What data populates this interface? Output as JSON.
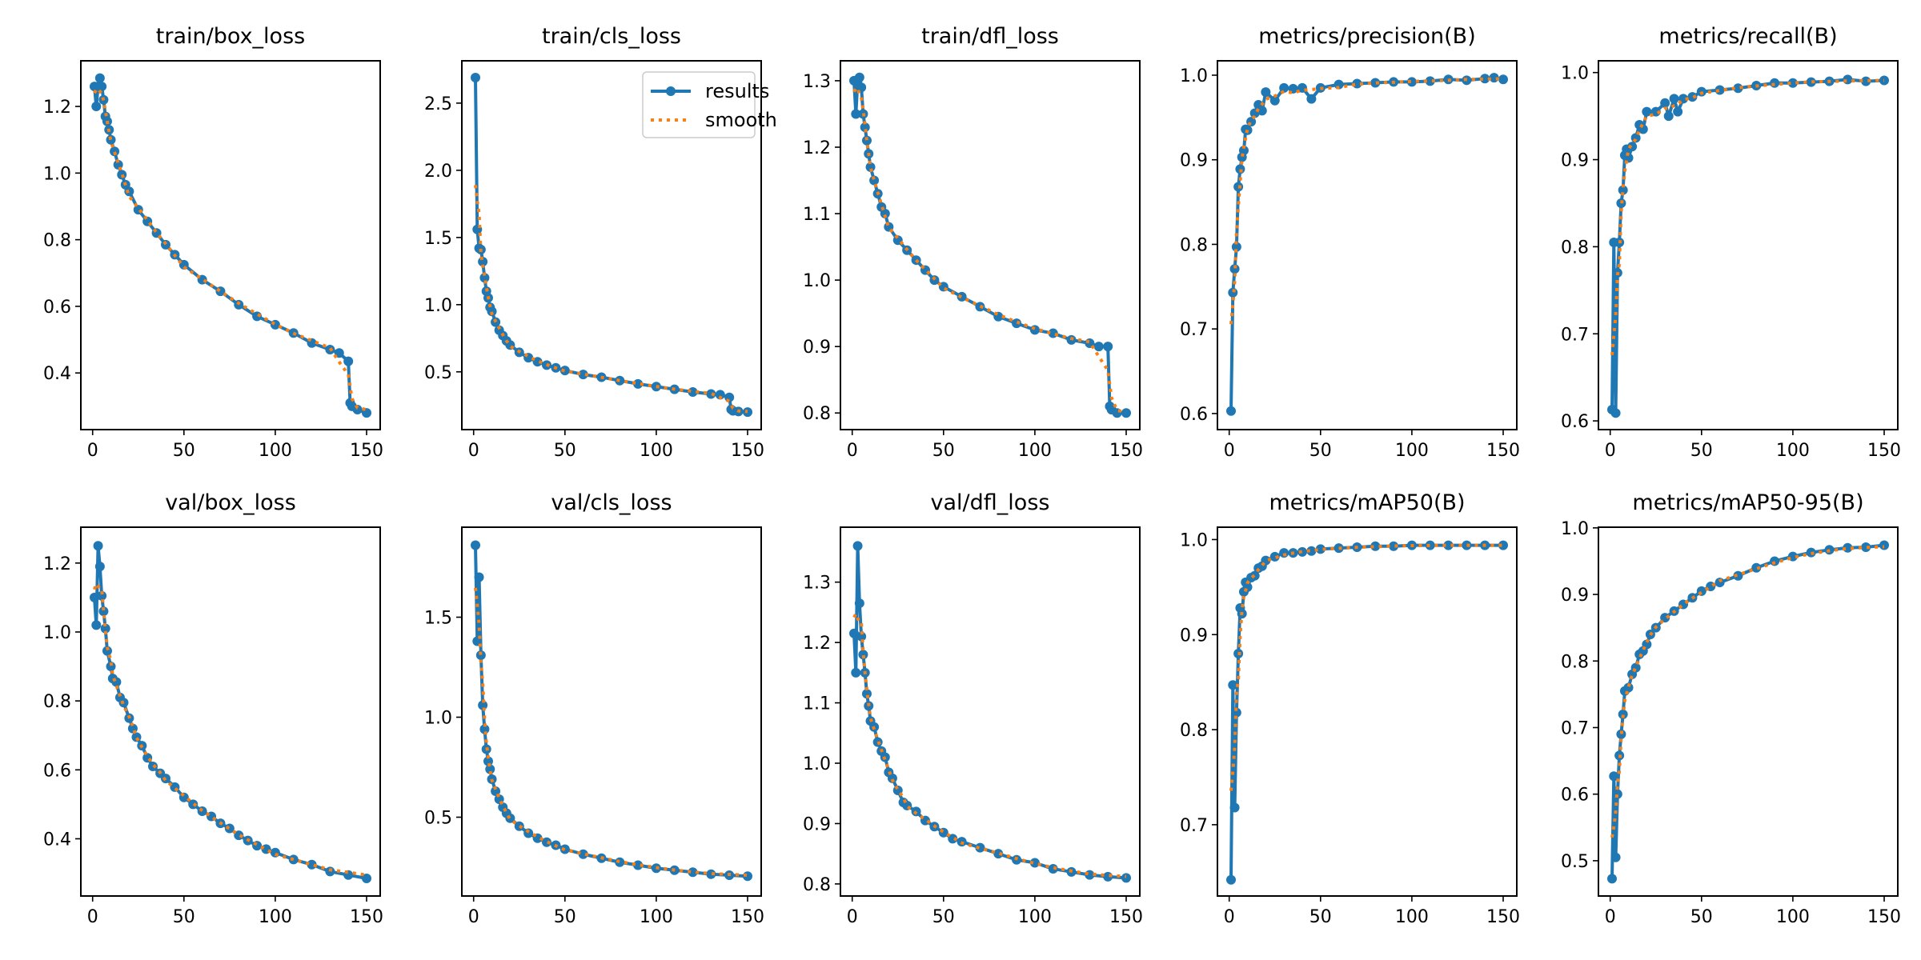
{
  "legend": {
    "results_label": "results",
    "smooth_label": "smooth",
    "placement": "upper-right of train/cls_loss"
  },
  "colors": {
    "results": "#1f77b4",
    "smooth": "#ff7f0e"
  },
  "chart_data": [
    {
      "type": "line",
      "title": "train/box_loss",
      "xlim": [
        -6.45,
        157.45
      ],
      "ylim": [
        0.23,
        1.337
      ],
      "xticks": [
        0,
        50,
        100,
        150
      ],
      "yticks": [
        "0.4",
        "0.6",
        "0.8",
        "1.0",
        "1.2"
      ],
      "grid": false,
      "x": [
        1,
        2,
        3,
        4,
        5,
        6,
        7,
        8,
        9,
        10,
        12,
        14,
        16,
        18,
        20,
        25,
        30,
        35,
        40,
        45,
        50,
        60,
        70,
        80,
        90,
        100,
        110,
        120,
        130,
        135,
        140,
        141,
        142,
        145,
        150
      ],
      "series": [
        {
          "name": "results",
          "values": [
            1.26,
            1.2,
            1.26,
            1.285,
            1.26,
            1.22,
            1.17,
            1.155,
            1.13,
            1.1,
            1.065,
            1.025,
            0.995,
            0.965,
            0.945,
            0.89,
            0.855,
            0.82,
            0.785,
            0.755,
            0.725,
            0.68,
            0.645,
            0.605,
            0.57,
            0.545,
            0.52,
            0.49,
            0.47,
            0.46,
            0.435,
            0.31,
            0.3,
            0.29,
            0.28
          ]
        }
      ]
    },
    {
      "type": "line",
      "title": "train/cls_loss",
      "xlim": [
        -6.45,
        157.45
      ],
      "ylim": [
        0.07,
        2.815
      ],
      "xticks": [
        0,
        50,
        100,
        150
      ],
      "yticks": [
        "0.5",
        "1.0",
        "1.5",
        "2.0",
        "2.5"
      ],
      "grid": false,
      "legend": true,
      "x": [
        1,
        2,
        3,
        4,
        5,
        6,
        7,
        8,
        9,
        10,
        12,
        14,
        16,
        18,
        20,
        25,
        30,
        35,
        40,
        45,
        50,
        60,
        70,
        80,
        90,
        100,
        110,
        120,
        130,
        135,
        140,
        141,
        142,
        145,
        150
      ],
      "series": [
        {
          "name": "results",
          "values": [
            2.69,
            1.56,
            1.42,
            1.41,
            1.32,
            1.2,
            1.1,
            1.05,
            0.98,
            0.95,
            0.87,
            0.81,
            0.77,
            0.73,
            0.7,
            0.645,
            0.605,
            0.575,
            0.55,
            0.53,
            0.51,
            0.48,
            0.46,
            0.435,
            0.41,
            0.39,
            0.37,
            0.35,
            0.335,
            0.33,
            0.31,
            0.22,
            0.21,
            0.205,
            0.2
          ]
        }
      ]
    },
    {
      "type": "line",
      "title": "train/dfl_loss",
      "xlim": [
        -6.45,
        157.45
      ],
      "ylim": [
        0.775,
        1.33
      ],
      "xticks": [
        0,
        50,
        100,
        150
      ],
      "yticks": [
        "0.8",
        "0.9",
        "1.0",
        "1.1",
        "1.2",
        "1.3"
      ],
      "grid": false,
      "x": [
        1,
        2,
        3,
        4,
        5,
        6,
        7,
        8,
        9,
        10,
        12,
        14,
        16,
        18,
        20,
        25,
        30,
        35,
        40,
        45,
        50,
        60,
        70,
        80,
        90,
        100,
        110,
        120,
        130,
        135,
        140,
        141,
        142,
        145,
        150
      ],
      "series": [
        {
          "name": "results",
          "values": [
            1.3,
            1.25,
            1.3,
            1.305,
            1.29,
            1.25,
            1.23,
            1.21,
            1.19,
            1.17,
            1.15,
            1.13,
            1.11,
            1.1,
            1.08,
            1.06,
            1.045,
            1.03,
            1.015,
            1.0,
            0.99,
            0.975,
            0.96,
            0.945,
            0.935,
            0.925,
            0.92,
            0.91,
            0.905,
            0.9,
            0.9,
            0.81,
            0.805,
            0.8,
            0.8
          ]
        }
      ]
    },
    {
      "type": "line",
      "title": "metrics/precision(B)",
      "xlim": [
        -6.45,
        157.45
      ],
      "ylim": [
        0.581,
        1.017
      ],
      "xticks": [
        0,
        50,
        100,
        150
      ],
      "yticks": [
        "0.6",
        "0.7",
        "0.8",
        "0.9",
        "1.0"
      ],
      "grid": false,
      "x": [
        1,
        2,
        3,
        4,
        5,
        6,
        7,
        8,
        9,
        10,
        12,
        14,
        16,
        18,
        20,
        25,
        30,
        35,
        40,
        45,
        50,
        60,
        70,
        80,
        90,
        100,
        110,
        120,
        130,
        140,
        145,
        150
      ],
      "series": [
        {
          "name": "results",
          "values": [
            0.603,
            0.743,
            0.771,
            0.797,
            0.868,
            0.889,
            0.903,
            0.911,
            0.936,
            0.935,
            0.945,
            0.955,
            0.965,
            0.958,
            0.98,
            0.97,
            0.985,
            0.984,
            0.985,
            0.972,
            0.985,
            0.989,
            0.99,
            0.991,
            0.992,
            0.992,
            0.993,
            0.995,
            0.994,
            0.996,
            0.997,
            0.995
          ]
        }
      ]
    },
    {
      "type": "line",
      "title": "metrics/recall(B)",
      "xlim": [
        -6.45,
        157.45
      ],
      "ylim": [
        0.59,
        1.0135
      ],
      "xticks": [
        0,
        50,
        100,
        150
      ],
      "yticks": [
        "0.6",
        "0.7",
        "0.8",
        "0.9",
        "1.0"
      ],
      "grid": false,
      "x": [
        1,
        2,
        3,
        4,
        5,
        6,
        7,
        8,
        9,
        10,
        12,
        14,
        16,
        18,
        20,
        25,
        30,
        32,
        35,
        37,
        40,
        45,
        50,
        60,
        70,
        80,
        90,
        100,
        110,
        120,
        130,
        140,
        150
      ],
      "series": [
        {
          "name": "results",
          "values": [
            0.613,
            0.805,
            0.609,
            0.77,
            0.805,
            0.85,
            0.865,
            0.905,
            0.912,
            0.902,
            0.915,
            0.925,
            0.94,
            0.935,
            0.955,
            0.955,
            0.965,
            0.95,
            0.97,
            0.955,
            0.97,
            0.972,
            0.978,
            0.98,
            0.982,
            0.985,
            0.988,
            0.988,
            0.989,
            0.99,
            0.992,
            0.99,
            0.991
          ]
        }
      ]
    },
    {
      "type": "line",
      "title": "val/box_loss",
      "xlim": [
        -6.45,
        157.45
      ],
      "ylim": [
        0.234,
        1.304
      ],
      "xticks": [
        0,
        50,
        100,
        150
      ],
      "yticks": [
        "0.4",
        "0.6",
        "0.8",
        "1.0",
        "1.2"
      ],
      "grid": false,
      "x": [
        1,
        2,
        3,
        4,
        5,
        6,
        7,
        8,
        10,
        11,
        13,
        15,
        17,
        20,
        22,
        24,
        27,
        30,
        33,
        37,
        40,
        45,
        50,
        55,
        60,
        65,
        70,
        75,
        80,
        85,
        90,
        95,
        100,
        110,
        120,
        130,
        140,
        150
      ],
      "series": [
        {
          "name": "results",
          "values": [
            1.1,
            1.02,
            1.25,
            1.19,
            1.105,
            1.06,
            1.01,
            0.945,
            0.9,
            0.865,
            0.855,
            0.81,
            0.795,
            0.75,
            0.72,
            0.695,
            0.67,
            0.635,
            0.61,
            0.59,
            0.575,
            0.55,
            0.52,
            0.5,
            0.48,
            0.465,
            0.445,
            0.43,
            0.41,
            0.395,
            0.38,
            0.37,
            0.36,
            0.34,
            0.325,
            0.305,
            0.295,
            0.285
          ]
        }
      ]
    },
    {
      "type": "line",
      "title": "val/cls_loss",
      "xlim": [
        -6.45,
        157.45
      ],
      "ylim": [
        0.106,
        1.95
      ],
      "xticks": [
        0,
        50,
        100,
        150
      ],
      "yticks": [
        "0.5",
        "1.0",
        "1.5"
      ],
      "grid": false,
      "x": [
        1,
        2,
        3,
        4,
        5,
        6,
        7,
        8,
        9,
        10,
        12,
        14,
        16,
        18,
        20,
        25,
        30,
        35,
        40,
        45,
        50,
        60,
        70,
        80,
        90,
        100,
        110,
        120,
        130,
        140,
        150
      ],
      "series": [
        {
          "name": "results",
          "values": [
            1.86,
            1.38,
            1.7,
            1.31,
            1.06,
            0.94,
            0.84,
            0.78,
            0.74,
            0.69,
            0.63,
            0.59,
            0.55,
            0.52,
            0.495,
            0.455,
            0.42,
            0.395,
            0.375,
            0.36,
            0.34,
            0.315,
            0.295,
            0.275,
            0.26,
            0.245,
            0.235,
            0.225,
            0.215,
            0.21,
            0.205
          ]
        }
      ]
    },
    {
      "type": "line",
      "title": "val/dfl_loss",
      "xlim": [
        -6.45,
        157.45
      ],
      "ylim": [
        0.78,
        1.391
      ],
      "xticks": [
        0,
        50,
        100,
        150
      ],
      "yticks": [
        "0.8",
        "0.9",
        "1.0",
        "1.1",
        "1.2",
        "1.3"
      ],
      "grid": false,
      "x": [
        1,
        2,
        3,
        4,
        5,
        6,
        7,
        8,
        9,
        10,
        12,
        14,
        16,
        18,
        20,
        22,
        25,
        28,
        30,
        35,
        40,
        45,
        50,
        55,
        60,
        70,
        80,
        90,
        100,
        110,
        120,
        130,
        140,
        150
      ],
      "series": [
        {
          "name": "results",
          "values": [
            1.215,
            1.15,
            1.36,
            1.265,
            1.21,
            1.18,
            1.15,
            1.115,
            1.095,
            1.07,
            1.06,
            1.035,
            1.02,
            1.01,
            0.985,
            0.975,
            0.955,
            0.935,
            0.93,
            0.92,
            0.905,
            0.895,
            0.885,
            0.875,
            0.87,
            0.86,
            0.85,
            0.84,
            0.835,
            0.825,
            0.82,
            0.815,
            0.812,
            0.81
          ]
        }
      ]
    },
    {
      "type": "line",
      "title": "metrics/mAP50(B)",
      "xlim": [
        -6.45,
        157.45
      ],
      "ylim": [
        0.625,
        1.013
      ],
      "xticks": [
        0,
        50,
        100,
        150
      ],
      "yticks": [
        "0.7",
        "0.8",
        "0.9",
        "1.0"
      ],
      "grid": false,
      "x": [
        1,
        2,
        3,
        4,
        5,
        6,
        7,
        8,
        9,
        10,
        12,
        14,
        16,
        18,
        20,
        25,
        30,
        35,
        40,
        45,
        50,
        60,
        70,
        80,
        90,
        100,
        110,
        120,
        130,
        140,
        150
      ],
      "series": [
        {
          "name": "results",
          "values": [
            0.642,
            0.847,
            0.718,
            0.818,
            0.88,
            0.928,
            0.922,
            0.945,
            0.955,
            0.95,
            0.96,
            0.962,
            0.97,
            0.972,
            0.978,
            0.982,
            0.986,
            0.986,
            0.987,
            0.988,
            0.99,
            0.991,
            0.992,
            0.993,
            0.993,
            0.994,
            0.994,
            0.994,
            0.994,
            0.994,
            0.994
          ]
        }
      ]
    },
    {
      "type": "line",
      "title": "metrics/mAP50-95(B)",
      "xlim": [
        -6.45,
        157.45
      ],
      "ylim": [
        0.447,
        1.001
      ],
      "xticks": [
        0,
        50,
        100,
        150
      ],
      "yticks": [
        "0.5",
        "0.6",
        "0.7",
        "0.8",
        "0.9",
        "1.0"
      ],
      "grid": false,
      "x": [
        1,
        2,
        3,
        4,
        5,
        6,
        7,
        8,
        10,
        12,
        14,
        16,
        18,
        20,
        22,
        25,
        30,
        35,
        40,
        45,
        50,
        55,
        60,
        70,
        80,
        90,
        100,
        110,
        120,
        130,
        140,
        150
      ],
      "series": [
        {
          "name": "results",
          "values": [
            0.473,
            0.627,
            0.505,
            0.6,
            0.658,
            0.69,
            0.72,
            0.755,
            0.76,
            0.78,
            0.79,
            0.81,
            0.815,
            0.825,
            0.84,
            0.85,
            0.865,
            0.875,
            0.885,
            0.895,
            0.905,
            0.912,
            0.918,
            0.928,
            0.94,
            0.95,
            0.957,
            0.963,
            0.967,
            0.97,
            0.971,
            0.974
          ]
        }
      ]
    }
  ]
}
